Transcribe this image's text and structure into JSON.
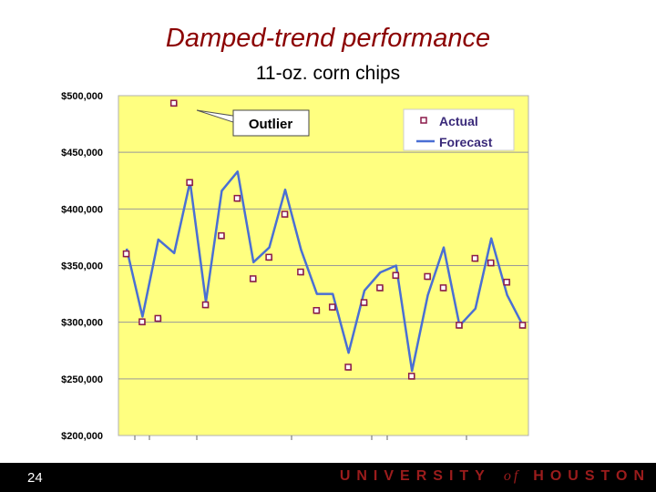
{
  "chart_data": {
    "type": "line",
    "title": "Damped-trend performance",
    "subtitle": "11-oz. corn chips",
    "ylim": [
      200000,
      500000
    ],
    "yticks": [
      500000,
      450000,
      400000,
      350000,
      300000,
      250000,
      200000
    ],
    "ytick_labels": [
      "$500,000",
      "$450,000",
      "$400,000",
      "$350,000",
      "$300,000",
      "$250,000",
      "$200,000"
    ],
    "x": [
      1,
      2,
      3,
      4,
      5,
      6,
      7,
      8,
      9,
      10,
      11,
      12,
      13,
      14,
      15,
      16,
      17,
      18,
      19,
      20,
      21,
      22,
      23,
      24,
      25,
      26
    ],
    "series": [
      {
        "name": "Actual",
        "values": [
          360000,
          300000,
          303000,
          493000,
          423000,
          315000,
          376000,
          409000,
          338000,
          357000,
          395000,
          344000,
          310000,
          313000,
          260000,
          317000,
          330000,
          341000,
          252000,
          340000,
          330000,
          297000,
          356000,
          352000,
          335000,
          297000
        ]
      },
      {
        "name": "Forecast",
        "values": [
          365000,
          305000,
          373000,
          361000,
          424000,
          318000,
          416000,
          433000,
          353000,
          366000,
          417000,
          364000,
          325000,
          325000,
          273000,
          328000,
          344000,
          350000,
          257000,
          324000,
          366000,
          297000,
          312000,
          374000,
          324000,
          297000
        ]
      }
    ],
    "legend": {
      "position": "top-right",
      "entries": [
        "Actual",
        "Forecast"
      ]
    },
    "annotations": [
      {
        "text": "Outlier"
      }
    ],
    "colors": {
      "plot_bg": "#ffff80",
      "actual_fill": "#ffffff",
      "actual_edge": "#8b1a4a",
      "forecast": "#4a6fd4",
      "grid": "#999999"
    }
  },
  "footer": {
    "page_number": "24",
    "brand_left": "UNIVERSITY",
    "brand_of": "of",
    "brand_right": "HOUSTON"
  }
}
